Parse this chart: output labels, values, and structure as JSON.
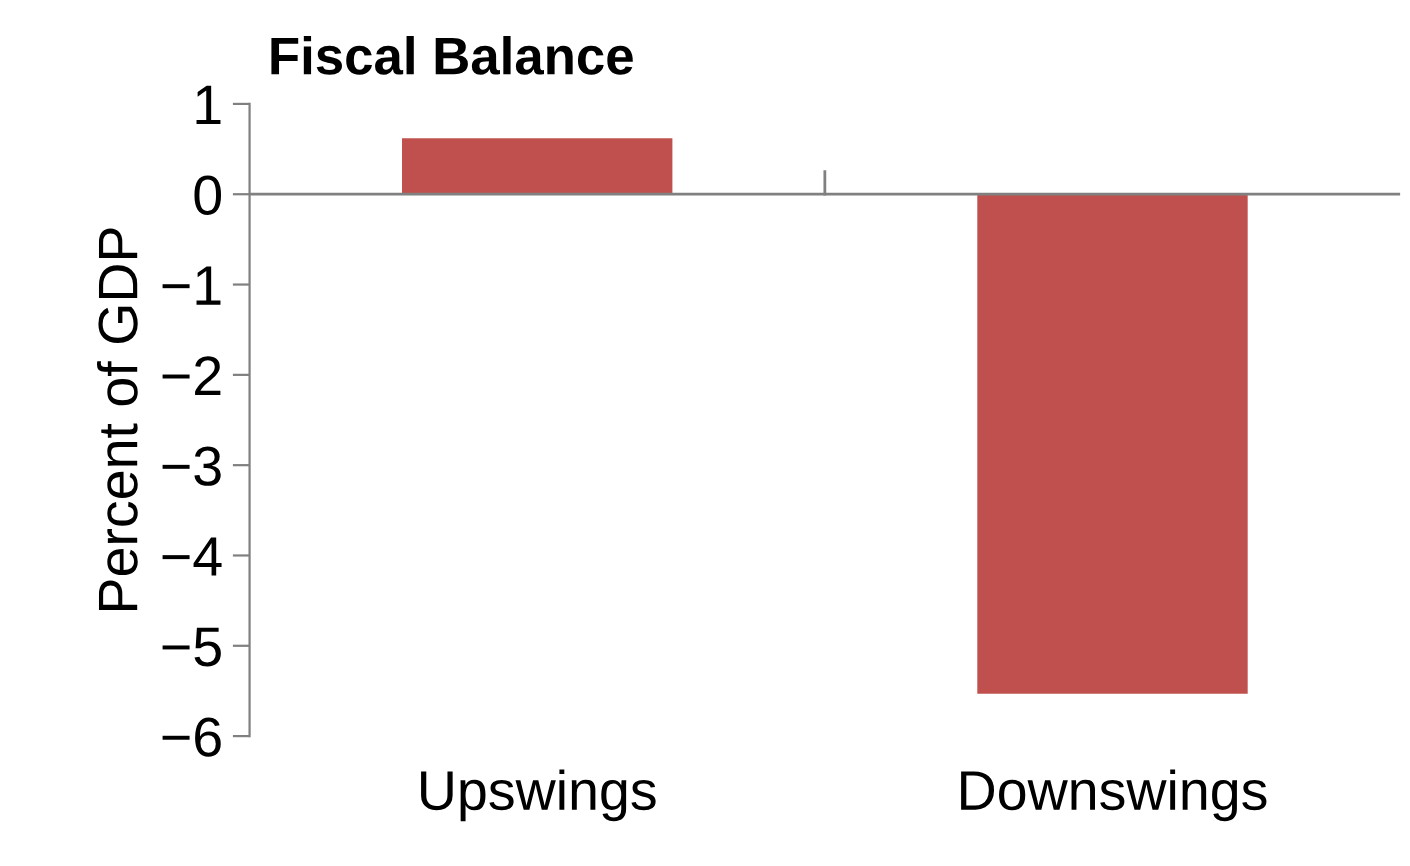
{
  "chart_data": {
    "type": "bar",
    "title": "Fiscal Balance",
    "ylabel": "Percent of GDP",
    "categories": [
      "Upswings",
      "Downswings"
    ],
    "values": [
      0.62,
      -5.53
    ],
    "color": "#c0504d",
    "ylim": [
      -6,
      1
    ],
    "yticks": [
      1,
      0,
      {
        "value": -1,
        "label": "−1"
      },
      {
        "value": -2,
        "label": "−2"
      },
      {
        "value": -3,
        "label": "−3"
      },
      {
        "value": -4,
        "label": "−4"
      },
      {
        "value": -5,
        "label": "−5"
      },
      {
        "value": -6,
        "label": "−6"
      }
    ],
    "legend": false
  }
}
